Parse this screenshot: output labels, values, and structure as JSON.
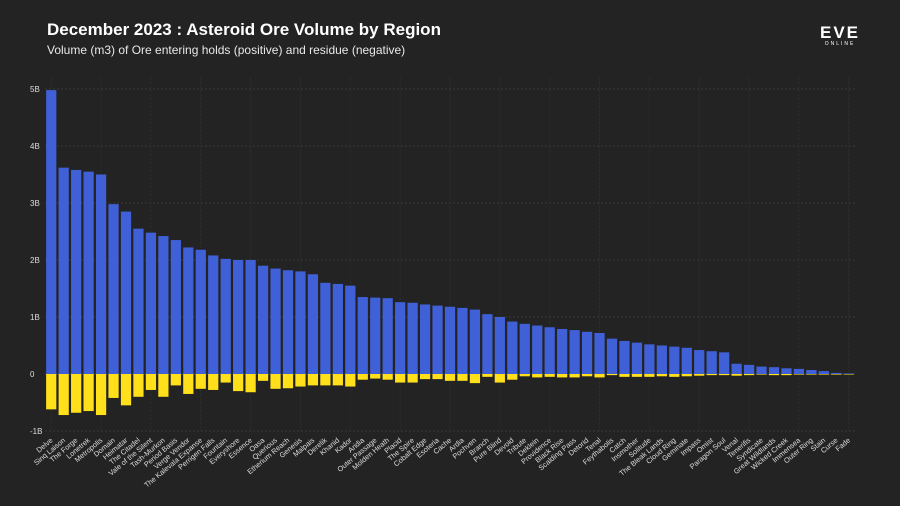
{
  "header": {
    "title": "December 2023 : Asteroid Ore Volume by Region",
    "subtitle": "Volume (m3) of Ore entering holds (positive) and residue (negative)"
  },
  "logo": {
    "main": "EVE",
    "sub": "ONLINE"
  },
  "chart_data": {
    "type": "bar",
    "title": "December 2023 : Asteroid Ore Volume by Region",
    "subtitle": "Volume (m3) of Ore entering holds (positive) and residue (negative)",
    "xlabel": "",
    "ylabel": "",
    "ylim": [
      -1,
      5.2
    ],
    "yticks": [
      -1,
      0,
      1,
      2,
      3,
      4,
      5
    ],
    "ytick_labels": [
      "-1B",
      "0",
      "1B",
      "2B",
      "3B",
      "4B",
      "5B"
    ],
    "grid": true,
    "units": "billions m3",
    "categories": [
      "Delve",
      "Sinq Laison",
      "The Forge",
      "Lonetrek",
      "Metropolis",
      "Domain",
      "Heimatar",
      "The Citadel",
      "Vale of the Silent",
      "Tash-Murkon",
      "Period Basis",
      "Verge Vendor",
      "The Kalevala Expanse",
      "Perrigen Falls",
      "Fountain",
      "Everyshore",
      "Essence",
      "Oasa",
      "Querious",
      "Etherium Reach",
      "Genesis",
      "Malpais",
      "Derelik",
      "Khanid",
      "Kador",
      "Aridia",
      "Outer Passage",
      "Molden Heath",
      "Placid",
      "The Spire",
      "Cobalt Edge",
      "Esoteria",
      "Cache",
      "Ardia",
      "Pochven",
      "Branch",
      "Pure Blind",
      "Devoid",
      "Tribute",
      "Deklein",
      "Providence",
      "Black Rise",
      "Scalding Pass",
      "Detorid",
      "Tenal",
      "Feythabolis",
      "Catch",
      "Insmother",
      "Solitude",
      "The Bleak Lands",
      "Cloud Ring",
      "Geminate",
      "Impass",
      "Omist",
      "Paragon Soul",
      "Venal",
      "Tenerifis",
      "Syndicate",
      "Great Wildlands",
      "Wicked Creek",
      "Immensea",
      "Outer Ring",
      "Stain",
      "Curse",
      "Fade"
    ],
    "series": [
      {
        "name": "Ore entering holds",
        "color": "#4060d8",
        "values": [
          4.98,
          3.62,
          3.58,
          3.55,
          3.5,
          2.98,
          2.85,
          2.55,
          2.48,
          2.42,
          2.35,
          2.22,
          2.18,
          2.08,
          2.02,
          2.0,
          2.0,
          1.9,
          1.85,
          1.82,
          1.8,
          1.75,
          1.6,
          1.58,
          1.55,
          1.35,
          1.34,
          1.33,
          1.26,
          1.25,
          1.22,
          1.2,
          1.18,
          1.16,
          1.13,
          1.05,
          1.0,
          0.92,
          0.88,
          0.85,
          0.82,
          0.79,
          0.77,
          0.74,
          0.72,
          0.62,
          0.58,
          0.55,
          0.52,
          0.5,
          0.48,
          0.46,
          0.42,
          0.4,
          0.38,
          0.18,
          0.16,
          0.13,
          0.12,
          0.1,
          0.09,
          0.07,
          0.05,
          0.02,
          0.01
        ]
      },
      {
        "name": "Residue",
        "color": "#ffe01a",
        "values": [
          -0.62,
          -0.72,
          -0.68,
          -0.65,
          -0.72,
          -0.42,
          -0.55,
          -0.4,
          -0.28,
          -0.4,
          -0.2,
          -0.35,
          -0.26,
          -0.28,
          -0.15,
          -0.3,
          -0.32,
          -0.12,
          -0.26,
          -0.25,
          -0.22,
          -0.2,
          -0.2,
          -0.2,
          -0.22,
          -0.1,
          -0.08,
          -0.1,
          -0.15,
          -0.15,
          -0.09,
          -0.09,
          -0.12,
          -0.12,
          -0.16,
          -0.05,
          -0.15,
          -0.1,
          -0.04,
          -0.06,
          -0.05,
          -0.06,
          -0.06,
          -0.04,
          -0.06,
          -0.02,
          -0.05,
          -0.05,
          -0.05,
          -0.04,
          -0.05,
          -0.04,
          -0.03,
          -0.02,
          -0.02,
          -0.03,
          -0.02,
          -0.01,
          -0.02,
          -0.02,
          -0.01,
          -0.01,
          -0.01,
          -0.01,
          -0.005
        ]
      }
    ]
  }
}
